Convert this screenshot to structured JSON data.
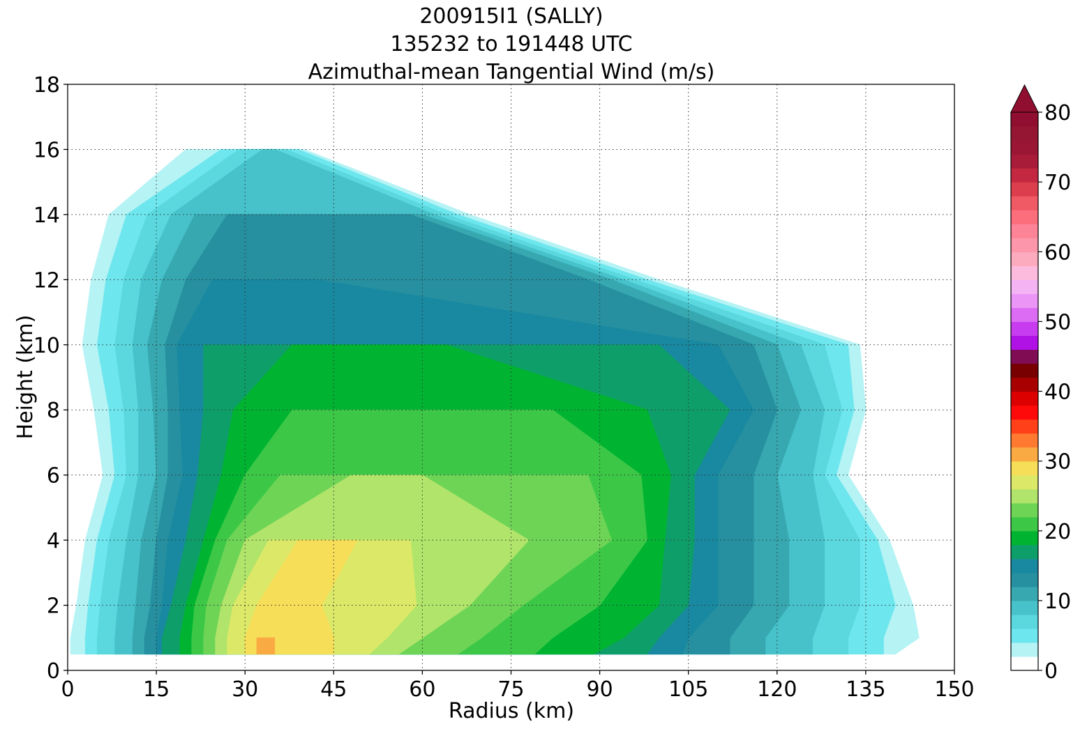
{
  "chart_data": {
    "type": "heatmap",
    "subtype": "filled-contour",
    "title": [
      "200915I1 (SALLY)",
      "135232 to 191448 UTC",
      "Azimuthal-mean Tangential Wind (m/s)"
    ],
    "xlabel": "Radius (km)",
    "ylabel": "Height (km)",
    "xlim": [
      0,
      150
    ],
    "ylim": [
      0,
      18
    ],
    "xticks": [
      0,
      15,
      30,
      45,
      60,
      75,
      90,
      105,
      120,
      135,
      150
    ],
    "yticks": [
      0,
      2,
      4,
      6,
      8,
      10,
      12,
      14,
      16,
      18
    ],
    "grid": true,
    "colorbar": {
      "min": 0,
      "max": 80,
      "step": 2,
      "extend": "max",
      "ticks": [
        0,
        10,
        20,
        30,
        40,
        50,
        60,
        70,
        80
      ],
      "colors": [
        "#ffffff",
        "#b5f3f5",
        "#6ee6ee",
        "#5ad8de",
        "#47c2ca",
        "#37a8b0",
        "#2690a0",
        "#1889a0",
        "#0e9e6a",
        "#00b432",
        "#3cc846",
        "#6ed456",
        "#b0e46a",
        "#dce868",
        "#f6de58",
        "#faaa42",
        "#ff7a30",
        "#ff4018",
        "#ff0a0a",
        "#dc0000",
        "#a80000",
        "#780000",
        "#800c54",
        "#b012e6",
        "#c83cf0",
        "#dc6cf4",
        "#eb96f6",
        "#f4b4f4",
        "#fcbadc",
        "#fcaabe",
        "#fc96aa",
        "#fc8496",
        "#fc6e7c",
        "#f05a64",
        "#dc3e4e",
        "#c42840",
        "#a81c3a",
        "#9a1634",
        "#941633",
        "#900f30"
      ]
    },
    "contour_levels": [
      3,
      5,
      7,
      9,
      11,
      13,
      15,
      17,
      19,
      21,
      23,
      25,
      27,
      29,
      31,
      35
    ],
    "profiles": [
      {
        "z": 0.5,
        "r_inner": [
          0.5,
          3,
          5,
          8,
          11,
          13,
          15,
          16,
          19,
          21,
          23,
          25,
          27,
          30,
          32,
          47
        ],
        "r_outer": [
          140,
          138,
          132,
          126,
          118,
          112,
          104,
          98,
          89,
          79,
          66,
          56,
          51,
          45,
          35,
          0
        ]
      },
      {
        "z": 1,
        "r_inner": [
          0.5,
          3,
          5,
          8,
          11,
          13,
          15,
          16,
          19,
          21,
          23,
          25,
          27,
          30,
          32,
          44
        ],
        "r_outer": [
          144,
          138,
          132,
          126,
          118,
          112,
          105,
          100,
          94,
          82,
          70,
          60,
          54,
          45,
          35,
          0
        ]
      },
      {
        "z": 2,
        "r_inner": [
          1.5,
          3.5,
          5.5,
          8.5,
          11.5,
          14,
          16,
          17.5,
          20,
          21.5,
          23.5,
          26,
          28,
          32,
          36,
          53
        ],
        "r_outer": [
          143,
          140,
          134,
          128,
          122,
          116,
          110,
          105,
          100,
          90,
          77,
          68,
          59,
          43,
          35,
          0
        ]
      },
      {
        "z": 4,
        "r_inner": [
          3,
          5,
          7,
          10,
          12.5,
          15,
          17,
          20,
          23,
          25,
          27,
          30,
          34,
          39,
          50,
          0
        ],
        "r_outer": [
          139,
          137,
          134,
          128,
          122,
          116,
          110,
          106,
          101,
          98,
          92,
          78,
          58,
          49,
          45,
          0
        ]
      },
      {
        "z": 6,
        "r_inner": [
          6,
          8,
          10,
          12,
          15,
          17,
          19.5,
          22,
          26,
          30,
          36,
          48,
          80,
          0,
          0,
          0
        ],
        "r_outer": [
          132,
          130,
          128,
          126,
          120,
          116,
          110,
          106,
          102,
          97,
          88,
          60,
          47,
          0,
          0,
          0
        ]
      },
      {
        "z": 8,
        "r_inner": [
          4.5,
          7,
          9.5,
          12,
          14.5,
          17,
          19,
          23,
          28,
          38,
          90,
          0,
          0,
          0,
          0,
          0
        ],
        "r_outer": [
          135,
          133,
          131,
          128,
          124,
          120,
          116,
          112,
          98,
          82,
          65,
          0,
          0,
          0,
          0,
          0
        ]
      },
      {
        "z": 10,
        "r_inner": [
          2.5,
          5,
          8,
          11,
          13.5,
          16.5,
          18.5,
          23,
          38,
          0,
          0,
          0,
          0,
          0,
          0,
          0
        ],
        "r_outer": [
          134,
          132,
          128,
          124,
          120,
          116,
          110,
          100,
          64,
          0,
          0,
          0,
          0,
          0,
          0,
          0
        ]
      },
      {
        "z": 12,
        "r_inner": [
          4,
          6.5,
          9.5,
          12.5,
          16,
          20,
          24.5,
          0,
          0,
          0,
          0,
          0,
          0,
          0,
          0,
          0
        ],
        "r_outer": [
          100,
          98,
          96,
          94,
          92,
          88,
          42,
          0,
          0,
          0,
          0,
          0,
          0,
          0,
          0,
          0
        ]
      },
      {
        "z": 14,
        "r_inner": [
          7,
          10,
          13.5,
          17.5,
          21.5,
          27,
          40,
          0,
          0,
          0,
          0,
          0,
          0,
          0,
          0,
          0
        ],
        "r_outer": [
          68,
          66,
          64,
          62,
          60,
          58,
          24,
          0,
          0,
          0,
          0,
          0,
          0,
          0,
          0,
          0
        ]
      },
      {
        "z": 16,
        "r_inner": [
          20,
          26,
          29,
          33,
          37,
          0,
          0,
          0,
          0,
          0,
          0,
          0,
          0,
          0,
          0,
          0
        ],
        "r_outer": [
          40,
          39,
          37,
          35,
          32,
          0,
          0,
          0,
          0,
          0,
          0,
          0,
          0,
          0,
          0,
          0
        ]
      }
    ]
  }
}
